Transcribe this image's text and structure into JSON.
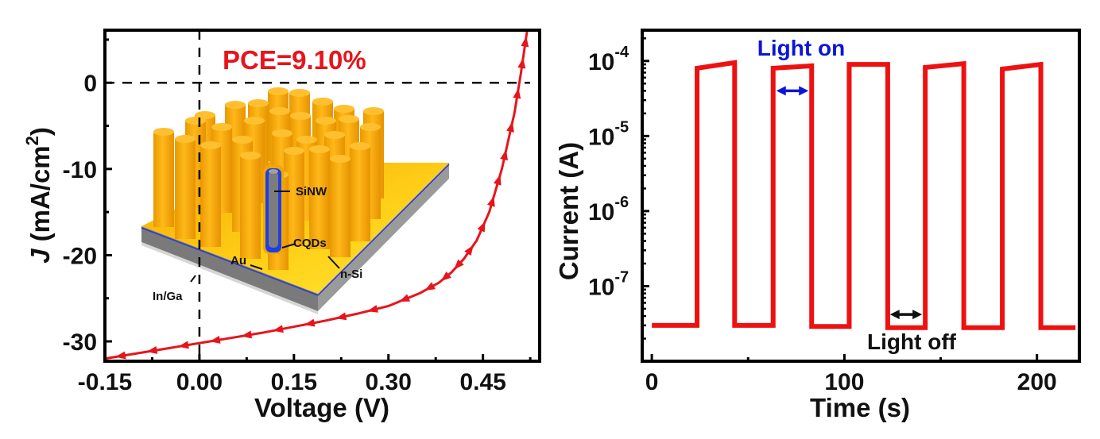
{
  "chart_data": [
    {
      "type": "line",
      "title": "",
      "xlabel": "Voltage (V)",
      "ylabel_italic": "J",
      "ylabel_rest": " (mA/cm",
      "ylabel_sup": "2",
      "ylabel_close": ")",
      "xlim": [
        -0.15,
        0.54
      ],
      "ylim": [
        -32.3,
        6.1
      ],
      "x_ticks": [
        -0.15,
        0.0,
        0.15,
        0.3,
        0.45
      ],
      "x_tick_labels": [
        "-0.15",
        "0.00",
        "0.15",
        "0.30",
        "0.45"
      ],
      "y_ticks": [
        0,
        -10,
        -20,
        -30
      ],
      "y_tick_labels": [
        "0",
        "-10",
        "-20",
        "-30"
      ],
      "grid": false,
      "reference_lines": {
        "x": 0.0,
        "y": 0.0,
        "style": "dashed"
      },
      "annotation": "PCE=9.10%",
      "annotation_color": "#e8141c",
      "series": [
        {
          "name": "J-V",
          "color": "#e8141c",
          "marker": "triangle",
          "x": [
            -0.15,
            -0.1,
            -0.05,
            0.0,
            0.05,
            0.1,
            0.15,
            0.2,
            0.25,
            0.3,
            0.35,
            0.38,
            0.4,
            0.42,
            0.44,
            0.46,
            0.48,
            0.5,
            0.51,
            0.52
          ],
          "y": [
            -32.0,
            -31.4,
            -30.8,
            -30.2,
            -29.6,
            -29.0,
            -28.3,
            -27.6,
            -26.8,
            -25.9,
            -24.4,
            -23.2,
            -22.0,
            -20.4,
            -18.3,
            -15.0,
            -10.0,
            -3.5,
            1.0,
            6.0
          ]
        }
      ],
      "inset": {
        "description": "SiNW/CQDs device schematic",
        "labels": [
          "SiNW",
          "CQDs",
          "Au",
          "n-Si",
          "In/Ga"
        ]
      }
    },
    {
      "type": "line",
      "title": "",
      "xlabel": "Time (s)",
      "ylabel": "Current (A)",
      "yscale": "log",
      "xlim": [
        -5,
        222
      ],
      "ylim_log10": [
        -8.0,
        -3.59
      ],
      "x_ticks": [
        0,
        100,
        200
      ],
      "x_tick_labels": [
        "0",
        "100",
        "200"
      ],
      "x_minor_ticks": [
        50,
        150
      ],
      "y_ticks_log10": [
        -4,
        -5,
        -6,
        -7
      ],
      "y_tick_labels": [
        {
          "base": "10",
          "exp": "-4"
        },
        {
          "base": "10",
          "exp": "-5"
        },
        {
          "base": "10",
          "exp": "-6"
        },
        {
          "base": "10",
          "exp": "-7"
        }
      ],
      "grid": false,
      "annotations": [
        {
          "text": "Light on",
          "color": "#0c16d4",
          "arrow_from": 63,
          "arrow_to": 83,
          "arrow_current": 4e-05
        },
        {
          "text": "Light off",
          "color": "#111111",
          "arrow_from": 122,
          "arrow_to": 142,
          "arrow_current": 4.2e-08
        }
      ],
      "series": [
        {
          "name": "Photocurrent",
          "color": "#ee1111",
          "t": [
            0,
            23.5,
            23.5,
            43,
            43,
            63,
            63,
            83,
            83,
            102.5,
            102.5,
            122.5,
            122.5,
            142,
            142,
            162,
            162,
            182,
            182,
            202,
            202,
            220
          ],
          "current": [
            3e-08,
            3e-08,
            8e-05,
            9.5e-05,
            3e-08,
            3e-08,
            8e-05,
            8.6e-05,
            2.9e-08,
            2.9e-08,
            9e-05,
            9e-05,
            2.8e-08,
            2.8e-08,
            8.2e-05,
            9.2e-05,
            2.8e-08,
            2.8e-08,
            7.8e-05,
            9e-05,
            2.8e-08,
            2.8e-08
          ]
        }
      ]
    }
  ]
}
